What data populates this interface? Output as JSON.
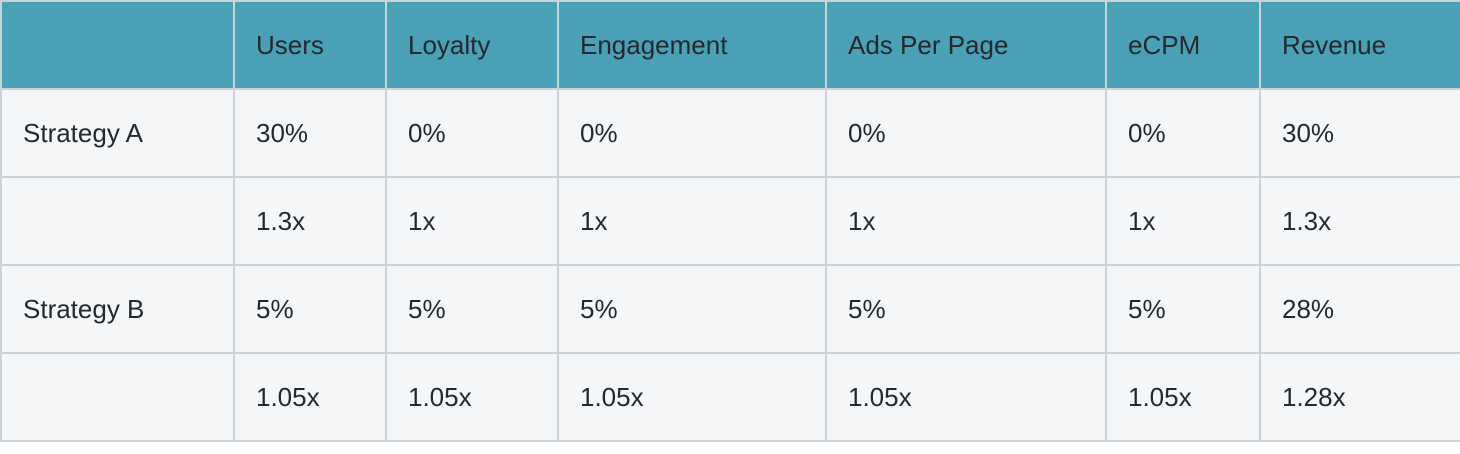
{
  "table": {
    "headers": [
      "",
      "Users",
      "Loyalty",
      "Engagement",
      "Ads Per Page",
      "eCPM",
      "Revenue"
    ],
    "rows": [
      [
        "Strategy A",
        "30%",
        "0%",
        "0%",
        "0%",
        "0%",
        "30%"
      ],
      [
        "",
        "1.3x",
        "1x",
        "1x",
        "1x",
        "1x",
        "1.3x"
      ],
      [
        "Strategy B",
        "5%",
        "5%",
        "5%",
        "5%",
        "5%",
        "28%"
      ],
      [
        "",
        "1.05x",
        "1.05x",
        "1.05x",
        "1.05x",
        "1.05x",
        "1.28x"
      ]
    ]
  },
  "colors": {
    "header_bg": "#4aa0b5",
    "body_bg": "#f5f6f8",
    "border": "#cbd2d8"
  }
}
